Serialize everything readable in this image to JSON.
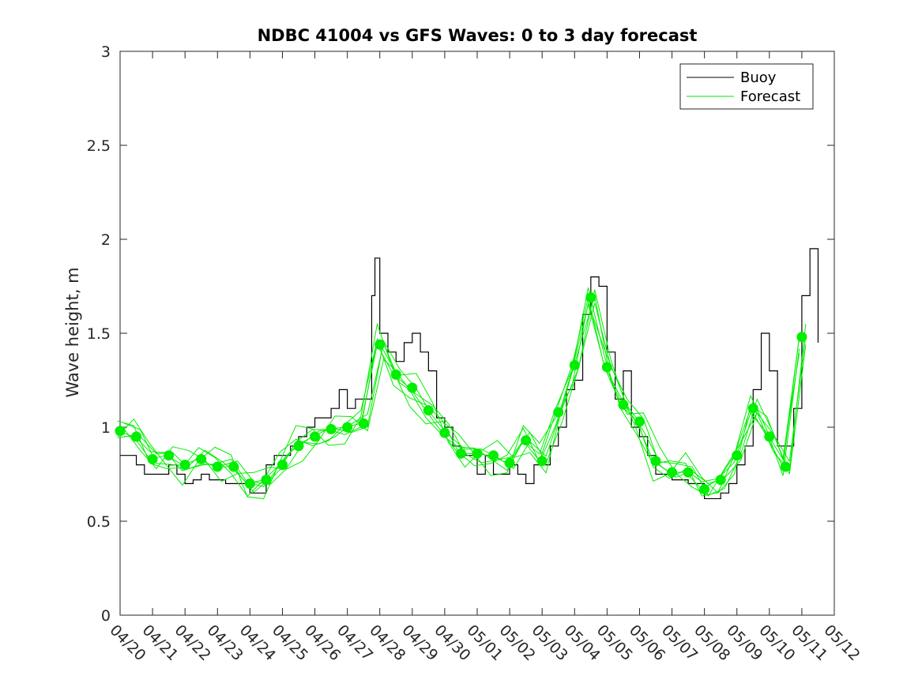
{
  "chart_data": {
    "type": "line",
    "title": "NDBC 41004 vs GFS Waves: 0 to 3 day forecast",
    "xlabel": "",
    "ylabel": "Wave height, m",
    "ylim": [
      0,
      3
    ],
    "yticks": [
      "0",
      "0.5",
      "1",
      "1.5",
      "2",
      "2.5",
      "3"
    ],
    "xticks": [
      "04/20",
      "04/21",
      "04/22",
      "04/23",
      "04/24",
      "04/25",
      "04/26",
      "04/27",
      "04/28",
      "04/29",
      "04/30",
      "05/01",
      "05/02",
      "05/03",
      "05/04",
      "05/05",
      "05/06",
      "05/07",
      "05/08",
      "05/09",
      "05/10",
      "05/11",
      "05/12"
    ],
    "x_range_days": [
      0,
      22
    ],
    "legend": {
      "placement": "top-right",
      "entries": [
        "Buoy",
        "Forecast"
      ]
    },
    "grid": false,
    "colors": {
      "buoy": "#000000",
      "forecast": "#00ee00",
      "axes": "#262626"
    },
    "series": [
      {
        "name": "Buoy",
        "x": [
          0,
          0.25,
          0.5,
          0.75,
          1,
          1.25,
          1.5,
          1.75,
          2,
          2.25,
          2.5,
          2.75,
          3,
          3.25,
          3.5,
          3.75,
          4,
          4.25,
          4.5,
          4.75,
          5,
          5.25,
          5.5,
          5.75,
          6,
          6.25,
          6.5,
          6.75,
          7,
          7.25,
          7.5,
          7.75,
          7.85,
          8,
          8.25,
          8.5,
          8.75,
          9,
          9.25,
          9.5,
          9.75,
          10,
          10.25,
          10.5,
          10.75,
          11,
          11.25,
          11.5,
          11.75,
          12,
          12.25,
          12.5,
          12.75,
          13,
          13.25,
          13.5,
          13.75,
          14,
          14.25,
          14.5,
          14.75,
          15,
          15.25,
          15.5,
          15.75,
          16,
          16.25,
          16.5,
          16.75,
          17,
          17.25,
          17.5,
          17.75,
          18,
          18.25,
          18.5,
          18.75,
          19,
          19.25,
          19.5,
          19.75,
          20,
          20.25,
          20.5,
          20.75,
          21,
          21.25,
          21.5
        ],
        "y": [
          0.85,
          0.85,
          0.8,
          0.75,
          0.75,
          0.75,
          0.8,
          0.75,
          0.7,
          0.72,
          0.75,
          0.72,
          0.72,
          0.7,
          0.7,
          0.7,
          0.65,
          0.65,
          0.8,
          0.85,
          0.85,
          0.9,
          0.95,
          1.0,
          1.05,
          1.05,
          1.1,
          1.2,
          1.1,
          1.15,
          1.15,
          1.7,
          1.9,
          1.5,
          1.4,
          1.35,
          1.45,
          1.5,
          1.4,
          1.3,
          1.05,
          1.0,
          0.9,
          0.85,
          0.85,
          0.75,
          0.85,
          0.75,
          0.75,
          0.8,
          0.75,
          0.7,
          0.8,
          0.8,
          0.9,
          1.0,
          1.2,
          1.25,
          1.6,
          1.8,
          1.75,
          1.4,
          1.15,
          1.3,
          1.0,
          0.95,
          0.85,
          0.75,
          0.75,
          0.72,
          0.72,
          0.7,
          0.7,
          0.62,
          0.62,
          0.65,
          0.7,
          0.8,
          0.9,
          1.2,
          1.5,
          1.3,
          0.9,
          0.9,
          1.1,
          1.7,
          1.95,
          1.45
        ]
      },
      {
        "name": "Forecast",
        "markers_x": [
          0,
          0.5,
          1,
          1.5,
          2,
          2.5,
          3,
          3.5,
          4,
          4.5,
          5,
          5.5,
          6,
          6.5,
          7,
          7.5,
          8,
          8.5,
          9,
          9.5,
          10,
          10.5,
          11,
          11.5,
          12,
          12.5,
          13,
          13.5,
          14,
          14.5,
          15,
          15.5,
          16,
          16.5,
          17,
          17.5,
          18,
          18.5,
          19,
          19.5,
          20,
          20.5,
          21
        ],
        "markers_y": [
          0.98,
          0.95,
          0.83,
          0.85,
          0.8,
          0.83,
          0.79,
          0.79,
          0.7,
          0.72,
          0.8,
          0.9,
          0.95,
          0.99,
          1.0,
          1.02,
          1.44,
          1.28,
          1.21,
          1.09,
          0.97,
          0.86,
          0.86,
          0.85,
          0.81,
          0.93,
          0.82,
          1.08,
          1.33,
          1.69,
          1.32,
          1.12,
          1.03,
          0.82,
          0.76,
          0.76,
          0.67,
          0.72,
          0.85,
          1.1,
          0.95,
          0.79,
          1.48
        ]
      }
    ]
  }
}
